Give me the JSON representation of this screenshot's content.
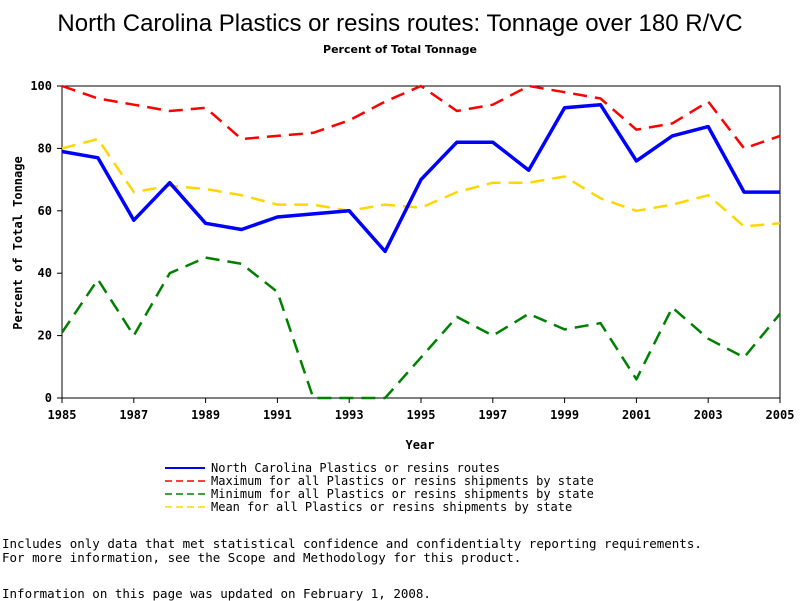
{
  "chart_data": {
    "type": "line",
    "title": "North Carolina Plastics or resins routes: Tonnage over 180 R/VC",
    "subtitle": "Percent of Total Tonnage",
    "xlabel": "Year",
    "ylabel": "Percent of Total Tonnage",
    "xlim": [
      1985,
      2005
    ],
    "ylim": [
      0,
      100
    ],
    "xticks": [
      "1985",
      "1987",
      "1989",
      "1991",
      "1993",
      "1995",
      "1997",
      "1999",
      "2001",
      "2003",
      "2005"
    ],
    "yticks": [
      "0",
      "20",
      "40",
      "60",
      "80",
      "100"
    ],
    "x": [
      1985,
      1986,
      1987,
      1988,
      1989,
      1990,
      1991,
      1992,
      1993,
      1994,
      1995,
      1996,
      1997,
      1998,
      1999,
      2000,
      2001,
      2002,
      2003,
      2004,
      2005
    ],
    "grid": false,
    "legend_position": "bottom",
    "series": [
      {
        "name": "North Carolina Plastics or resins routes",
        "color": "#0000ff",
        "style": "solid",
        "values": [
          79,
          77,
          57,
          69,
          56,
          54,
          58,
          59,
          60,
          47,
          70,
          82,
          82,
          73,
          93,
          94,
          76,
          84,
          87,
          66,
          66
        ]
      },
      {
        "name": "Maximum for all Plastics or resins shipments by state",
        "color": "#ff0000",
        "style": "dashed",
        "values": [
          100,
          96,
          94,
          92,
          93,
          83,
          84,
          85,
          89,
          95,
          100,
          92,
          94,
          100,
          98,
          96,
          86,
          88,
          95,
          80,
          84
        ]
      },
      {
        "name": "Minimum for all Plastics or resins shipments by state",
        "color": "#008000",
        "style": "dashed",
        "values": [
          21,
          38,
          20,
          40,
          45,
          43,
          34,
          0,
          0,
          0,
          13,
          26,
          20,
          27,
          22,
          24,
          6,
          29,
          19,
          13,
          27
        ]
      },
      {
        "name": "Mean for all Plastics or resins shipments by state",
        "color": "#ffd700",
        "style": "dashed",
        "values": [
          80,
          83,
          66,
          68,
          67,
          65,
          62,
          62,
          60,
          62,
          61,
          66,
          69,
          69,
          71,
          64,
          60,
          62,
          65,
          55,
          56
        ]
      }
    ]
  },
  "notes": {
    "line1": "Includes only data that met statistical confidence and confidentialty reporting requirements.",
    "line2": "For more information, see the Scope and Methodology for this product.",
    "updated": "Information on this page was updated on February 1, 2008."
  }
}
